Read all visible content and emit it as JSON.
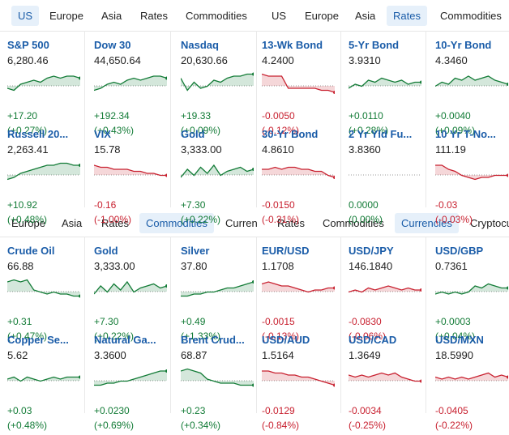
{
  "colors": {
    "accent": "#1a5ca8",
    "up": "#127b36",
    "down": "#c8202f",
    "tab_active_bg": "#e6f0fa"
  },
  "top_left_tabs": [
    "US",
    "Europe",
    "Asia",
    "Rates",
    "Commodities"
  ],
  "top_right_tabs": [
    "US",
    "Europe",
    "Asia",
    "Rates",
    "Commodities"
  ],
  "bottom_left_tabs": [
    "Europe",
    "Asia",
    "Rates",
    "Commodities",
    "Curren"
  ],
  "bottom_right_tabs": [
    "Rates",
    "Commodities",
    "Currencies",
    "Cryptocu"
  ],
  "quotes": [
    {
      "name": "S&P 500",
      "price": "6,280.46",
      "change": "+17.20",
      "pct": "(+0.27%)",
      "dir": "up",
      "spark": [
        2,
        1,
        4,
        5,
        6,
        5,
        7,
        8,
        7,
        8,
        8,
        7
      ]
    },
    {
      "name": "Dow 30",
      "price": "44,650.64",
      "change": "+192.34",
      "pct": "(+0.43%)",
      "dir": "up",
      "spark": [
        1,
        2,
        4,
        5,
        4,
        6,
        7,
        6,
        7,
        8,
        8,
        7
      ]
    },
    {
      "name": "Nasdaq",
      "price": "20,630.66",
      "change": "+19.33",
      "pct": "(+0.09%)",
      "dir": "up",
      "spark": [
        7,
        1,
        5,
        2,
        3,
        6,
        5,
        7,
        8,
        8,
        9,
        9
      ]
    },
    {
      "name": "13-Wk Bond",
      "price": "4.2400",
      "change": "-0.0050",
      "pct": "(-0.12%)",
      "dir": "down",
      "spark": [
        9,
        8,
        8,
        8,
        2,
        2,
        2,
        2,
        2,
        1,
        1,
        0
      ]
    },
    {
      "name": "5-Yr Bond",
      "price": "3.9310",
      "change": "+0.0110",
      "pct": "(+0.28%)",
      "dir": "up",
      "spark": [
        2,
        4,
        3,
        6,
        5,
        7,
        6,
        5,
        6,
        4,
        5,
        5
      ]
    },
    {
      "name": "10-Yr Bond",
      "price": "4.3460",
      "change": "+0.0040",
      "pct": "(+0.09%)",
      "dir": "up",
      "spark": [
        3,
        5,
        4,
        7,
        6,
        8,
        6,
        7,
        8,
        6,
        5,
        4
      ]
    },
    {
      "name": "Russell 20...",
      "price": "2,263.41",
      "change": "+10.92",
      "pct": "(+0.48%)",
      "dir": "up",
      "spark": [
        1,
        2,
        4,
        5,
        6,
        7,
        8,
        8,
        9,
        9,
        8,
        8
      ]
    },
    {
      "name": "VIX",
      "price": "15.78",
      "change": "-0.16",
      "pct": "(-1.00%)",
      "dir": "down",
      "spark": [
        8,
        7,
        7,
        6,
        6,
        6,
        5,
        5,
        4,
        4,
        3,
        3
      ]
    },
    {
      "name": "Gold",
      "price": "3,333.00",
      "change": "+7.30",
      "pct": "(+0.22%)",
      "dir": "up",
      "spark": [
        2,
        6,
        3,
        7,
        4,
        8,
        3,
        5,
        6,
        7,
        5,
        6
      ]
    },
    {
      "name": "30-Yr Bond",
      "price": "4.8610",
      "change": "-0.0150",
      "pct": "(-0.31%)",
      "dir": "down",
      "spark": [
        6,
        6,
        7,
        6,
        7,
        7,
        6,
        6,
        5,
        5,
        3,
        2
      ]
    },
    {
      "name": "2 Yr Yld Fu...",
      "price": "3.8360",
      "change": "0.0000",
      "pct": "(0.00%)",
      "dir": "flat",
      "spark": []
    },
    {
      "name": "10 Yr T-No...",
      "price": "111.19",
      "change": "-0.03",
      "pct": "(-0.03%)",
      "dir": "down",
      "spark": [
        8,
        8,
        6,
        5,
        3,
        2,
        1,
        2,
        2,
        3,
        3,
        3
      ]
    },
    {
      "name": "Crude Oil",
      "price": "66.88",
      "change": "+0.31",
      "pct": "(+0.47%)",
      "dir": "up",
      "spark": [
        8,
        9,
        8,
        9,
        4,
        3,
        2,
        3,
        2,
        2,
        1,
        1
      ]
    },
    {
      "name": "Gold",
      "price": "3,333.00",
      "change": "+7.30",
      "pct": "(+0.22%)",
      "dir": "up",
      "spark": [
        2,
        6,
        3,
        7,
        4,
        8,
        3,
        5,
        6,
        7,
        5,
        6
      ]
    },
    {
      "name": "Silver",
      "price": "37.80",
      "change": "+0.49",
      "pct": "(+1.33%)",
      "dir": "up",
      "spark": [
        1,
        1,
        2,
        2,
        3,
        3,
        4,
        5,
        5,
        6,
        7,
        8
      ]
    },
    {
      "name": "EUR/USD",
      "price": "1.1708",
      "change": "-0.0015",
      "pct": "(-0.13%)",
      "dir": "down",
      "spark": [
        7,
        8,
        7,
        6,
        6,
        5,
        4,
        3,
        4,
        4,
        5,
        5
      ]
    },
    {
      "name": "USD/JPY",
      "price": "146.1840",
      "change": "-0.0830",
      "pct": "(-0.06%)",
      "dir": "down",
      "spark": [
        3,
        4,
        3,
        5,
        4,
        5,
        6,
        5,
        4,
        5,
        4,
        4
      ]
    },
    {
      "name": "USD/GBP",
      "price": "0.7361",
      "change": "+0.0003",
      "pct": "(+0.04%)",
      "dir": "up",
      "spark": [
        2,
        3,
        2,
        3,
        2,
        3,
        6,
        5,
        7,
        6,
        5,
        5
      ]
    },
    {
      "name": "Copper Se...",
      "price": "5.62",
      "change": "+0.03",
      "pct": "(+0.48%)",
      "dir": "up",
      "spark": [
        4,
        5,
        3,
        5,
        4,
        3,
        4,
        5,
        4,
        5,
        5,
        5
      ]
    },
    {
      "name": "Natural Ga...",
      "price": "3.3600",
      "change": "+0.0230",
      "pct": "(+0.69%)",
      "dir": "up",
      "spark": [
        1,
        1,
        2,
        2,
        3,
        3,
        4,
        5,
        6,
        7,
        8,
        8
      ]
    },
    {
      "name": "Brent Crud...",
      "price": "68.87",
      "change": "+0.23",
      "pct": "(+0.34%)",
      "dir": "up",
      "spark": [
        8,
        9,
        8,
        7,
        4,
        3,
        2,
        2,
        2,
        1,
        1,
        1
      ]
    },
    {
      "name": "USD/AUD",
      "price": "1.5164",
      "change": "-0.0129",
      "pct": "(-0.84%)",
      "dir": "down",
      "spark": [
        8,
        8,
        7,
        7,
        6,
        6,
        5,
        5,
        4,
        3,
        2,
        1
      ]
    },
    {
      "name": "USD/CAD",
      "price": "1.3649",
      "change": "-0.0034",
      "pct": "(-0.25%)",
      "dir": "down",
      "spark": [
        6,
        5,
        6,
        5,
        6,
        7,
        6,
        7,
        5,
        4,
        3,
        3
      ]
    },
    {
      "name": "USD/MXN",
      "price": "18.5990",
      "change": "-0.0405",
      "pct": "(-0.22%)",
      "dir": "down",
      "spark": [
        5,
        4,
        5,
        4,
        5,
        4,
        5,
        6,
        7,
        5,
        6,
        5
      ]
    }
  ]
}
